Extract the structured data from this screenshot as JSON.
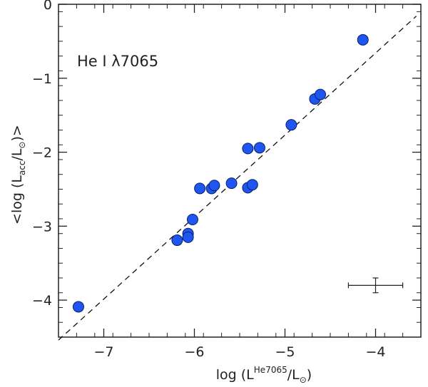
{
  "chart_data": {
    "type": "scatter",
    "annotation": "He I λ7065",
    "xlabel": {
      "prefix": "log (L",
      "sup": "He7065",
      "mid": "/L",
      "sun": "⊙",
      "suffix": ")"
    },
    "ylabel": {
      "prefix": "<log (L",
      "sub": "acc",
      "mid": "/L",
      "sun": "⊙",
      "suffix": ")>"
    },
    "xlim": [
      -7.5,
      -3.5
    ],
    "ylim": [
      -4.5,
      0
    ],
    "xticks": [
      -7,
      -6,
      -5,
      -4
    ],
    "yticks": [
      0,
      -1,
      -2,
      -3,
      -4
    ],
    "xtick_labels": [
      "−7",
      "−6",
      "−5",
      "−4"
    ],
    "ytick_labels": [
      "0",
      "−1",
      "−2",
      "−3",
      "−4"
    ],
    "grid": false,
    "marker_color": "#1f56f2",
    "points": [
      {
        "x": -7.28,
        "y": -4.09
      },
      {
        "x": -6.19,
        "y": -3.19
      },
      {
        "x": -6.07,
        "y": -3.1
      },
      {
        "x": -6.07,
        "y": -3.15
      },
      {
        "x": -6.02,
        "y": -2.91
      },
      {
        "x": -5.94,
        "y": -2.49
      },
      {
        "x": -5.81,
        "y": -2.49
      },
      {
        "x": -5.78,
        "y": -2.45
      },
      {
        "x": -5.59,
        "y": -2.42
      },
      {
        "x": -5.41,
        "y": -2.48
      },
      {
        "x": -5.36,
        "y": -2.44
      },
      {
        "x": -5.41,
        "y": -1.95
      },
      {
        "x": -5.28,
        "y": -1.94
      },
      {
        "x": -4.93,
        "y": -1.63
      },
      {
        "x": -4.67,
        "y": -1.28
      },
      {
        "x": -4.61,
        "y": -1.22
      },
      {
        "x": -4.14,
        "y": -0.48
      }
    ],
    "line": {
      "style": "dashed",
      "x": [
        -7.5,
        -3.55
      ],
      "y": [
        -4.54,
        -0.16
      ]
    },
    "error_bar": {
      "x": -4.0,
      "y": -3.8,
      "xerr": 0.3,
      "yerr": 0.1
    }
  }
}
